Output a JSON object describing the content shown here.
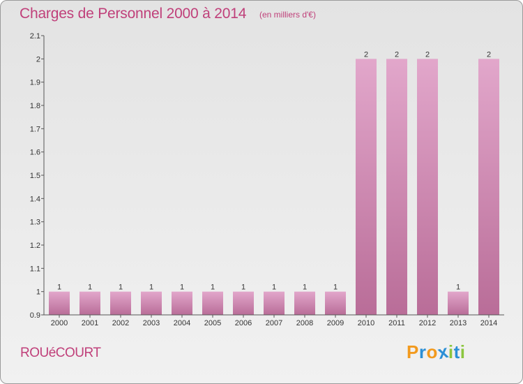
{
  "chart_data": {
    "type": "bar",
    "title": "Charges de Personnel 2000 à 2014",
    "subtitle": "(en milliers d'€)",
    "categories": [
      "2000",
      "2001",
      "2002",
      "2003",
      "2004",
      "2005",
      "2006",
      "2007",
      "2008",
      "2009",
      "2010",
      "2011",
      "2012",
      "2013",
      "2014"
    ],
    "values": [
      1,
      1,
      1,
      1,
      1,
      1,
      1,
      1,
      1,
      1,
      2,
      2,
      2,
      1,
      2
    ],
    "data_labels": [
      "1",
      "1",
      "1",
      "1",
      "1",
      "1",
      "1",
      "1",
      "1",
      "1",
      "2",
      "2",
      "2",
      "1",
      "2"
    ],
    "yticks": [
      "0.9",
      "1",
      "1.1",
      "1.2",
      "1.3",
      "1.4",
      "1.5",
      "1.6",
      "1.7",
      "1.8",
      "1.9",
      "2",
      "2.1"
    ],
    "ylim": [
      0.9,
      2.1
    ],
    "grid": false,
    "bar_color_top": "#e2a7cb",
    "bar_color_bottom": "#b96d98"
  },
  "footer": {
    "commune": "ROUéCOURT",
    "logo": [
      "P",
      "r",
      "o",
      "x",
      "i",
      "t",
      "i"
    ],
    "logo_colors": [
      "#f29a1e",
      "#2b8fd6",
      "#f29a1e",
      "#2b8fd6",
      "#8cc63f",
      "#2b8fd6",
      "#8cc63f"
    ]
  }
}
